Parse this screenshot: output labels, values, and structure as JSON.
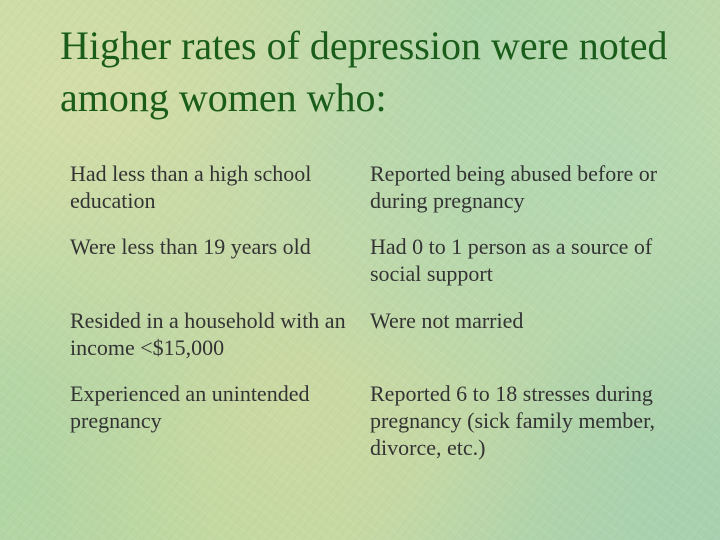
{
  "slide": {
    "title": "Higher rates of depression were noted among women who:",
    "left_items": [
      "Had less than a high school education",
      "Were less than 19 years old",
      "Resided in a household with an income <$15,000",
      "Experienced an unintended pregnancy"
    ],
    "right_items": [
      "Reported being abused before or during pregnancy",
      "Had 0 to 1 person as a source of social support",
      "Were not married",
      "Reported 6 to 18 stresses during pregnancy (sick family member, divorce, etc.)"
    ]
  },
  "colors": {
    "title": "#1a5c1a",
    "body_text": "#333333",
    "background": "#b9d8a3"
  }
}
